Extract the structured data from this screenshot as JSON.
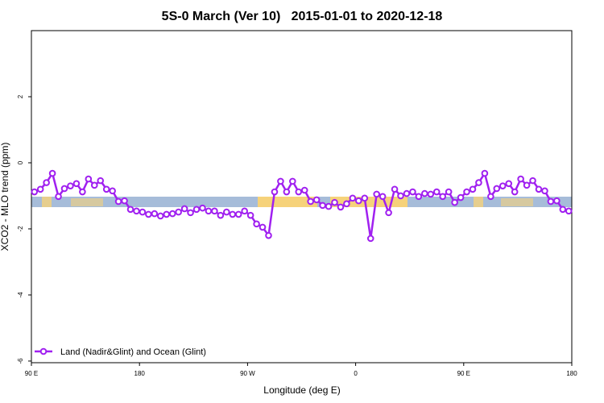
{
  "chart_data": {
    "type": "line",
    "title": "5S-0 March (Ver 10)   2015-01-01 to 2020-12-18",
    "x_label": "Longitude (deg E)",
    "y_label": "XCO2 - MLO trend (ppm)",
    "x": [
      92.5,
      97.5,
      102.5,
      107.5,
      112.5,
      117.5,
      122.5,
      127.5,
      132.5,
      137.5,
      142.5,
      147.5,
      152.5,
      157.5,
      162.5,
      167.5,
      172.5,
      177.5,
      182.5,
      187.5,
      192.5,
      197.5,
      202.5,
      207.5,
      212.5,
      217.5,
      222.5,
      227.5,
      232.5,
      237.5,
      242.5,
      247.5,
      252.5,
      257.5,
      262.5,
      267.5,
      272.5,
      277.5,
      282.5,
      287.5,
      292.5,
      297.5,
      302.5,
      307.5,
      312.5,
      317.5,
      322.5,
      327.5,
      332.5,
      337.5,
      342.5,
      347.5,
      352.5,
      357.5,
      362.5,
      367.5,
      372.5,
      377.5,
      382.5,
      387.5,
      392.5,
      397.5,
      402.5,
      407.5,
      412.5,
      417.5,
      422.5,
      427.5,
      432.5,
      437.5,
      442.5,
      447.5,
      452.5,
      457.5,
      462.5,
      467.5,
      472.5,
      477.5,
      482.5,
      487.5,
      492.5,
      497.5,
      502.5,
      507.5,
      512.5,
      517.5,
      522.5,
      527.5,
      532.5,
      537.5
    ],
    "series": [
      {
        "name": "Land (Nadir&Glint) and Ocean (Glint)",
        "color": "#a020f0",
        "values": [
          -0.88,
          -0.8,
          -0.6,
          -0.32,
          -1.02,
          -0.78,
          -0.7,
          -0.63,
          -0.88,
          -0.49,
          -0.68,
          -0.54,
          -0.8,
          -0.85,
          -1.17,
          -1.15,
          -1.41,
          -1.46,
          -1.49,
          -1.56,
          -1.54,
          -1.61,
          -1.56,
          -1.54,
          -1.49,
          -1.39,
          -1.51,
          -1.41,
          -1.37,
          -1.46,
          -1.46,
          -1.59,
          -1.49,
          -1.56,
          -1.56,
          -1.46,
          -1.59,
          -1.85,
          -1.95,
          -2.2,
          -0.88,
          -0.56,
          -0.88,
          -0.56,
          -0.88,
          -0.83,
          -1.17,
          -1.12,
          -1.29,
          -1.32,
          -1.2,
          -1.34,
          -1.24,
          -1.07,
          -1.15,
          -1.07,
          -2.29,
          -0.95,
          -1.02,
          -1.51,
          -0.8,
          -1.0,
          -0.93,
          -0.88,
          -1.02,
          -0.93,
          -0.95,
          -0.88,
          -1.02,
          -0.88,
          -1.2,
          -1.05,
          -0.88,
          -0.8,
          -0.6,
          -0.32,
          -1.02,
          -0.78,
          -0.7,
          -0.63,
          -0.88,
          -0.49,
          -0.68,
          -0.54,
          -0.8,
          -0.85,
          -1.17,
          -1.15,
          -1.41,
          -1.46
        ]
      }
    ],
    "xlim": [
      90,
      540
    ],
    "xticks": [
      {
        "value": 90,
        "label": "90 E"
      },
      180,
      {
        "value": 270,
        "label": "90 W"
      },
      {
        "value": 360,
        "label": "0"
      },
      {
        "value": 450,
        "label": "90 E"
      },
      {
        "value": 540,
        "label": "180"
      }
    ],
    "ylim": [
      -6.05,
      4
    ],
    "yticks": [
      -6,
      -4,
      -2,
      0,
      2
    ],
    "legend": "bottom-left"
  }
}
